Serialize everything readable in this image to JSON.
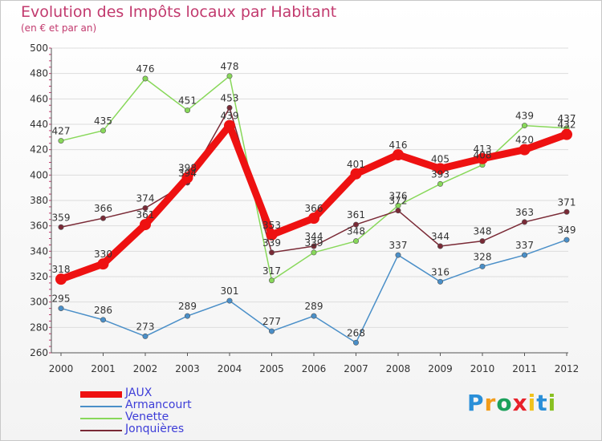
{
  "chart_data": {
    "type": "line",
    "title": "Evolution des Impôts locaux par Habitant",
    "subtitle": "(en € et par an)",
    "x": [
      "2000",
      "2001",
      "2002",
      "2003",
      "2004",
      "2005",
      "2006",
      "2007",
      "2008",
      "2009",
      "2010",
      "2011",
      "2012"
    ],
    "ylim": [
      260,
      500
    ],
    "yticks": [
      260,
      280,
      300,
      320,
      340,
      360,
      380,
      400,
      420,
      440,
      460,
      480,
      500
    ],
    "series": [
      {
        "name": "Armancourt",
        "color": "#4a8fc8",
        "values": [
          295,
          286,
          273,
          289,
          301,
          277,
          289,
          268,
          337,
          316,
          328,
          337,
          349
        ]
      },
      {
        "name": "Venette",
        "color": "#88d85a",
        "values": [
          427,
          435,
          476,
          451,
          478,
          317,
          339,
          348,
          376,
          393,
          408,
          439,
          437
        ]
      },
      {
        "name": "Jonquières",
        "color": "#7a2a36",
        "values": [
          359,
          366,
          374,
          394,
          453,
          339,
          344,
          361,
          372,
          344,
          348,
          363,
          371
        ]
      },
      {
        "name": "JAUX",
        "color": "#ee1111",
        "values": [
          318,
          330,
          361,
          398,
          439,
          353,
          366,
          401,
          416,
          405,
          413,
          420,
          432
        ]
      }
    ],
    "legend": [
      "JAUX",
      "Armancourt",
      "Venette",
      "Jonquières"
    ]
  },
  "logo": {
    "letters": [
      "P",
      "r",
      "o",
      "x",
      "i",
      "t",
      "i"
    ],
    "colors": [
      "#2a8fd8",
      "#f39c1a",
      "#1aa05a",
      "#e8212a",
      "#f0c21a",
      "#2a8fd8",
      "#88c020"
    ]
  }
}
